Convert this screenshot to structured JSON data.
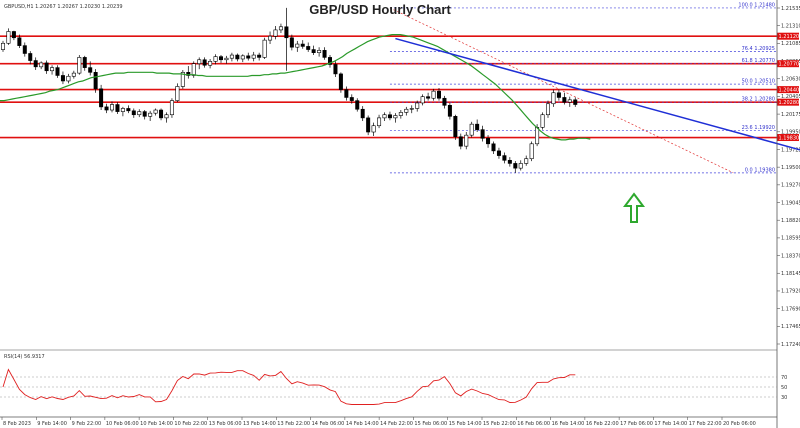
{
  "header": {
    "title": "GBP/USD Hourly Chart",
    "symbol_info": "GBPUSD,H1  1.20267  1.20267  1.20230  1.20239"
  },
  "rsi_panel": {
    "label": "RSI(14) 56.9317"
  },
  "chart_data": {
    "type": "candlestick",
    "title": "GBP/USD Hourly Chart",
    "price_axis": {
      "ticks": [
        "1.21535",
        "1.21310",
        "1.21085",
        "1.20855",
        "1.20630",
        "1.20405",
        "1.20175",
        "1.19950",
        "1.19725",
        "1.19500",
        "1.19270",
        "1.19045",
        "1.18820",
        "1.18595",
        "1.18370",
        "1.18145",
        "1.17920",
        "1.17690",
        "1.17465",
        "1.17240"
      ],
      "ylim": [
        1.1715,
        1.2153
      ]
    },
    "time_axis": {
      "ticks": [
        "8 Feb 2023",
        "9 Feb 14:00",
        "9 Feb 22:00",
        "10 Feb 06:00",
        "10 Feb 14:00",
        "10 Feb 22:00",
        "13 Feb 06:00",
        "13 Feb 14:00",
        "13 Feb 22:00",
        "14 Feb 06:00",
        "14 Feb 14:00",
        "14 Feb 22:00",
        "15 Feb 06:00",
        "15 Feb 14:00",
        "15 Feb 22:00",
        "16 Feb 06:00",
        "16 Feb 14:00",
        "16 Feb 22:00",
        "17 Feb 06:00",
        "17 Feb 14:00",
        "17 Feb 22:00",
        "20 Feb 06:00"
      ]
    },
    "horizontal_levels": [
      {
        "price": 1.2112,
        "label": "1.21120"
      },
      {
        "price": 1.2077,
        "label": "1.20770"
      },
      {
        "price": 1.2044,
        "label": "1.20440"
      },
      {
        "price": 1.2028,
        "label": "1.20280"
      },
      {
        "price": 1.1983,
        "label": "1.19830"
      }
    ],
    "fib_levels": [
      {
        "label": "100.0 1.21480",
        "price": 1.2148
      },
      {
        "label": "76.4 1.20925",
        "price": 1.20925
      },
      {
        "label": "61.8 1.20770",
        "price": 1.2077
      },
      {
        "label": "50.0 1.20510",
        "price": 1.2051
      },
      {
        "label": "38.2 1.20280",
        "price": 1.2028
      },
      {
        "label": "23.6 1.19920",
        "price": 1.1992
      },
      {
        "label": "0.0 1.19380",
        "price": 1.1938
      }
    ],
    "trend_line": {
      "from": {
        "bar": 72,
        "price": 1.2109
      },
      "to": {
        "bar": 149,
        "price": 1.1962
      }
    },
    "fib_diagonal": {
      "from": {
        "bar": 71,
        "price": 1.2148
      },
      "to": {
        "bar": 134,
        "price": 1.1938
      }
    },
    "sma": [
      1.203,
      1.203,
      1.2031,
      1.2032,
      1.2033,
      1.2034,
      1.2035,
      1.2036,
      1.2037,
      1.2038,
      1.2039,
      1.204,
      1.2042,
      1.2043,
      1.2044,
      1.2046,
      1.2048,
      1.205,
      1.2052,
      1.2054,
      1.2055,
      1.2057,
      1.2059,
      1.206,
      1.2061,
      1.2062,
      1.2063,
      1.2064,
      1.2065,
      1.2065,
      1.2065,
      1.2066,
      1.2066,
      1.2066,
      1.2066,
      1.2066,
      1.2066,
      1.2066,
      1.2065,
      1.2065,
      1.2065,
      1.2065,
      1.2064,
      1.2064,
      1.2064,
      1.2063,
      1.2063,
      1.2063,
      1.2062,
      1.2062,
      1.2061,
      1.2061,
      1.2061,
      1.2061,
      1.2061,
      1.2061,
      1.2061,
      1.2061,
      1.2061,
      1.2061,
      1.2061,
      1.2062,
      1.2062,
      1.2062,
      1.2063,
      1.2063,
      1.2064,
      1.2064,
      1.2065,
      1.2065,
      1.2066,
      1.2067,
      1.2068,
      1.2069,
      1.207,
      1.2071,
      1.2072,
      1.2073,
      1.2074,
      1.2076,
      1.2078,
      1.208,
      1.2083,
      1.2086,
      1.209,
      1.2093,
      1.2096,
      1.2099,
      1.2102,
      1.2105,
      1.2107,
      1.2109,
      1.2111,
      1.2112,
      1.2113,
      1.2114,
      1.2114,
      1.2114,
      1.2113,
      1.2112,
      1.2111,
      1.2109,
      1.2107,
      1.2105,
      1.2103,
      1.2101,
      1.2099,
      1.2096,
      1.2093,
      1.209,
      1.2087,
      1.2084,
      1.2081,
      1.2078,
      1.2075,
      1.2071,
      1.2067,
      1.2063,
      1.2059,
      1.2055,
      1.2051,
      1.2046,
      1.2041,
      1.2036,
      1.2031,
      1.2025,
      1.2019,
      1.2013,
      1.2007,
      1.2001,
      1.1996,
      1.1991,
      1.1987,
      1.1984,
      1.1982,
      1.1981,
      1.198,
      1.198,
      1.1981,
      1.1981,
      1.1982,
      1.1982,
      1.1982,
      1.1981
    ],
    "candles": [
      [
        1.2095,
        1.2106,
        1.2092,
        1.2103
      ],
      [
        1.2103,
        1.2122,
        1.2101,
        1.2118
      ],
      [
        1.2118,
        1.2119,
        1.2107,
        1.211
      ],
      [
        1.211,
        1.2114,
        1.2097,
        1.21
      ],
      [
        1.21,
        1.2104,
        1.2086,
        1.209
      ],
      [
        1.209,
        1.2093,
        1.2076,
        1.2081
      ],
      [
        1.2081,
        1.2085,
        1.2069,
        1.2073
      ],
      [
        1.2073,
        1.208,
        1.207,
        1.2078
      ],
      [
        1.2078,
        1.2081,
        1.2064,
        1.2068
      ],
      [
        1.2068,
        1.2075,
        1.2063,
        1.2072
      ],
      [
        1.2072,
        1.2075,
        1.2059,
        1.2062
      ],
      [
        1.2062,
        1.2067,
        1.2051,
        1.2055
      ],
      [
        1.2055,
        1.2064,
        1.2052,
        1.2061
      ],
      [
        1.2061,
        1.2068,
        1.2058,
        1.2065
      ],
      [
        1.2065,
        1.2088,
        1.2063,
        1.2085
      ],
      [
        1.2085,
        1.2087,
        1.2068,
        1.2072
      ],
      [
        1.2072,
        1.208,
        1.2062,
        1.2066
      ],
      [
        1.2066,
        1.207,
        1.204,
        1.2045
      ],
      [
        1.2045,
        1.205,
        1.2018,
        1.2022
      ],
      [
        1.2022,
        1.2026,
        1.2014,
        1.2018
      ],
      [
        1.2018,
        1.2029,
        1.2015,
        1.2025
      ],
      [
        1.2025,
        1.2028,
        1.2013,
        1.2016
      ],
      [
        1.2016,
        1.2022,
        1.201,
        1.202
      ],
      [
        1.202,
        1.2024,
        1.2014,
        1.2017
      ],
      [
        1.2017,
        1.202,
        1.2008,
        1.2012
      ],
      [
        1.2012,
        1.2019,
        1.2009,
        1.2016
      ],
      [
        1.2016,
        1.2018,
        1.2006,
        1.201
      ],
      [
        1.201,
        1.2017,
        1.2004,
        1.2014
      ],
      [
        1.2014,
        1.202,
        1.2011,
        1.2018
      ],
      [
        1.2018,
        1.202,
        1.2005,
        1.2008
      ],
      [
        1.2008,
        1.2015,
        1.2002,
        1.2012
      ],
      [
        1.2012,
        1.2033,
        1.2008,
        1.203
      ],
      [
        1.203,
        1.2052,
        1.2028,
        1.2048
      ],
      [
        1.2048,
        1.2069,
        1.2045,
        1.2066
      ],
      [
        1.2066,
        1.2074,
        1.2058,
        1.2062
      ],
      [
        1.2062,
        1.208,
        1.2059,
        1.2077
      ],
      [
        1.2077,
        1.2085,
        1.207,
        1.2082
      ],
      [
        1.2082,
        1.2085,
        1.2072,
        1.2075
      ],
      [
        1.2075,
        1.2083,
        1.2071,
        1.208
      ],
      [
        1.208,
        1.2089,
        1.2076,
        1.2086
      ],
      [
        1.2086,
        1.2088,
        1.2078,
        1.2082
      ],
      [
        1.2082,
        1.2087,
        1.2077,
        1.2084
      ],
      [
        1.2084,
        1.2091,
        1.208,
        1.2088
      ],
      [
        1.2088,
        1.209,
        1.208,
        1.2083
      ],
      [
        1.2083,
        1.2089,
        1.2079,
        1.2087
      ],
      [
        1.2087,
        1.2091,
        1.2081,
        1.2084
      ],
      [
        1.2084,
        1.2092,
        1.208,
        1.2088
      ],
      [
        1.2088,
        1.2091,
        1.2081,
        1.2085
      ],
      [
        1.2085,
        1.211,
        1.2083,
        1.2107
      ],
      [
        1.2107,
        1.2118,
        1.2102,
        1.2112
      ],
      [
        1.2112,
        1.2125,
        1.2108,
        1.212
      ],
      [
        1.212,
        1.2128,
        1.2116,
        1.2124
      ],
      [
        1.2124,
        1.2148,
        1.2068,
        1.211
      ],
      [
        1.211,
        1.2114,
        1.2094,
        1.2098
      ],
      [
        1.2098,
        1.2106,
        1.2092,
        1.2102
      ],
      [
        1.2102,
        1.2107,
        1.2096,
        1.2099
      ],
      [
        1.2099,
        1.2104,
        1.2092,
        1.2095
      ],
      [
        1.2095,
        1.21,
        1.2088,
        1.2091
      ],
      [
        1.2091,
        1.2098,
        1.2086,
        1.2094
      ],
      [
        1.2094,
        1.2098,
        1.2082,
        1.2085
      ],
      [
        1.2085,
        1.2088,
        1.2072,
        1.2076
      ],
      [
        1.2076,
        1.208,
        1.206,
        1.2064
      ],
      [
        1.2064,
        1.2066,
        1.204,
        1.2044
      ],
      [
        1.2044,
        1.2048,
        1.203,
        1.2034
      ],
      [
        1.2034,
        1.2038,
        1.2026,
        1.203
      ],
      [
        1.203,
        1.2033,
        1.2016,
        1.2019
      ],
      [
        1.2019,
        1.2023,
        1.2004,
        1.2008
      ],
      [
        1.2008,
        1.2011,
        1.1986,
        1.199
      ],
      [
        1.199,
        1.2002,
        1.1985,
        1.1998
      ],
      [
        1.1998,
        1.2012,
        1.1995,
        1.2008
      ],
      [
        1.2008,
        1.2015,
        1.2004,
        1.2012
      ],
      [
        1.2012,
        1.2016,
        1.2005,
        1.2008
      ],
      [
        1.2008,
        1.2014,
        1.2002,
        1.2011
      ],
      [
        1.2011,
        1.2018,
        1.2007,
        1.2015
      ],
      [
        1.2015,
        1.2022,
        1.2011,
        1.2019
      ],
      [
        1.2019,
        1.2024,
        1.2014,
        1.202
      ],
      [
        1.202,
        1.203,
        1.2016,
        1.2027
      ],
      [
        1.2027,
        1.2038,
        1.2024,
        1.2035
      ],
      [
        1.2035,
        1.204,
        1.203,
        1.2033
      ],
      [
        1.2033,
        1.2045,
        1.203,
        1.2042
      ],
      [
        1.2042,
        1.2046,
        1.203,
        1.2033
      ],
      [
        1.2033,
        1.2036,
        1.202,
        1.2024
      ],
      [
        1.2024,
        1.2027,
        1.2006,
        1.201
      ],
      [
        1.201,
        1.2012,
        1.198,
        1.1984
      ],
      [
        1.1984,
        1.1988,
        1.1968,
        1.1972
      ],
      [
        1.1972,
        1.199,
        1.1968,
        1.1986
      ],
      [
        1.1986,
        1.2003,
        1.1983,
        1.2
      ],
      [
        1.2,
        1.2006,
        1.199,
        1.1993
      ],
      [
        1.1993,
        1.1998,
        1.1978,
        1.1982
      ],
      [
        1.1982,
        1.1986,
        1.197,
        1.1975
      ],
      [
        1.1975,
        1.1978,
        1.1962,
        1.1966
      ],
      [
        1.1966,
        1.197,
        1.1956,
        1.196
      ],
      [
        1.196,
        1.1964,
        1.195,
        1.1954
      ],
      [
        1.1954,
        1.1958,
        1.1946,
        1.195
      ],
      [
        1.195,
        1.1953,
        1.1938,
        1.1944
      ],
      [
        1.1944,
        1.1954,
        1.1941,
        1.195
      ],
      [
        1.195,
        1.196,
        1.1947,
        1.1956
      ],
      [
        1.1956,
        1.1978,
        1.1953,
        1.1975
      ],
      [
        1.1975,
        1.2,
        1.1972,
        1.1996
      ],
      [
        1.1996,
        1.2015,
        1.1993,
        1.2012
      ],
      [
        1.2012,
        1.203,
        1.2008,
        1.2026
      ],
      [
        1.2026,
        1.2044,
        1.2022,
        1.204
      ],
      [
        1.204,
        1.2044,
        1.203,
        1.2034
      ],
      [
        1.2034,
        1.204,
        1.2025,
        1.2028
      ],
      [
        1.2028,
        1.2035,
        1.2022,
        1.2031
      ],
      [
        1.2031,
        1.2034,
        1.2022,
        1.2025
      ]
    ]
  }
}
